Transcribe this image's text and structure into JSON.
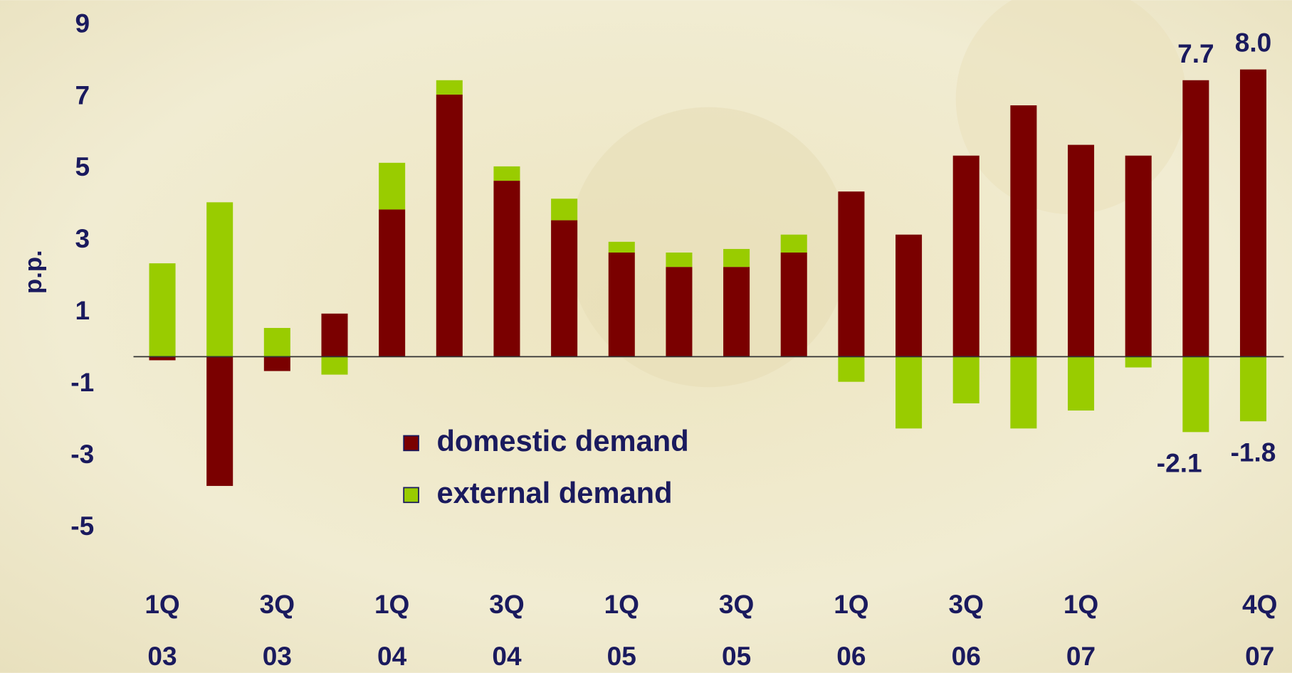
{
  "chart_data": {
    "type": "bar",
    "stacked": true,
    "y_label": "p.p.",
    "categories": [
      [
        "1Q",
        "03"
      ],
      null,
      [
        "3Q",
        "03"
      ],
      null,
      [
        "1Q",
        "04"
      ],
      null,
      [
        "3Q",
        "04"
      ],
      null,
      [
        "1Q",
        "05"
      ],
      null,
      [
        "3Q",
        "05"
      ],
      null,
      [
        "1Q",
        "06"
      ],
      null,
      [
        "3Q",
        "06"
      ],
      null,
      [
        "1Q",
        "07"
      ],
      null,
      null,
      [
        "4Q",
        "07"
      ]
    ],
    "series": [
      {
        "name": "domestic demand",
        "color": "#7a0000",
        "values": [
          -0.1,
          -3.6,
          -0.4,
          1.2,
          4.1,
          7.3,
          4.9,
          3.8,
          2.9,
          2.5,
          2.5,
          2.9,
          4.6,
          3.4,
          5.6,
          7.0,
          5.9,
          5.6,
          7.7,
          8.0
        ],
        "value_labels": [
          null,
          null,
          null,
          null,
          null,
          null,
          null,
          null,
          null,
          null,
          null,
          null,
          null,
          null,
          null,
          null,
          null,
          null,
          "7.7",
          "8.0"
        ]
      },
      {
        "name": "external demand",
        "color": "#99cc00",
        "values": [
          2.6,
          4.3,
          0.8,
          -0.5,
          1.3,
          0.4,
          0.4,
          0.6,
          0.3,
          0.4,
          0.5,
          0.5,
          -0.7,
          -2.0,
          -1.3,
          -2.0,
          -1.5,
          -0.3,
          -2.1,
          -1.8
        ],
        "value_labels": [
          null,
          null,
          null,
          null,
          null,
          null,
          null,
          null,
          null,
          null,
          null,
          null,
          null,
          null,
          null,
          null,
          null,
          null,
          "-2.1",
          "-1.8"
        ]
      }
    ],
    "ylim": [
      -6,
      10
    ],
    "yticks": [
      -5,
      -3,
      -1,
      1,
      3,
      5,
      7,
      9
    ],
    "grid": false
  }
}
